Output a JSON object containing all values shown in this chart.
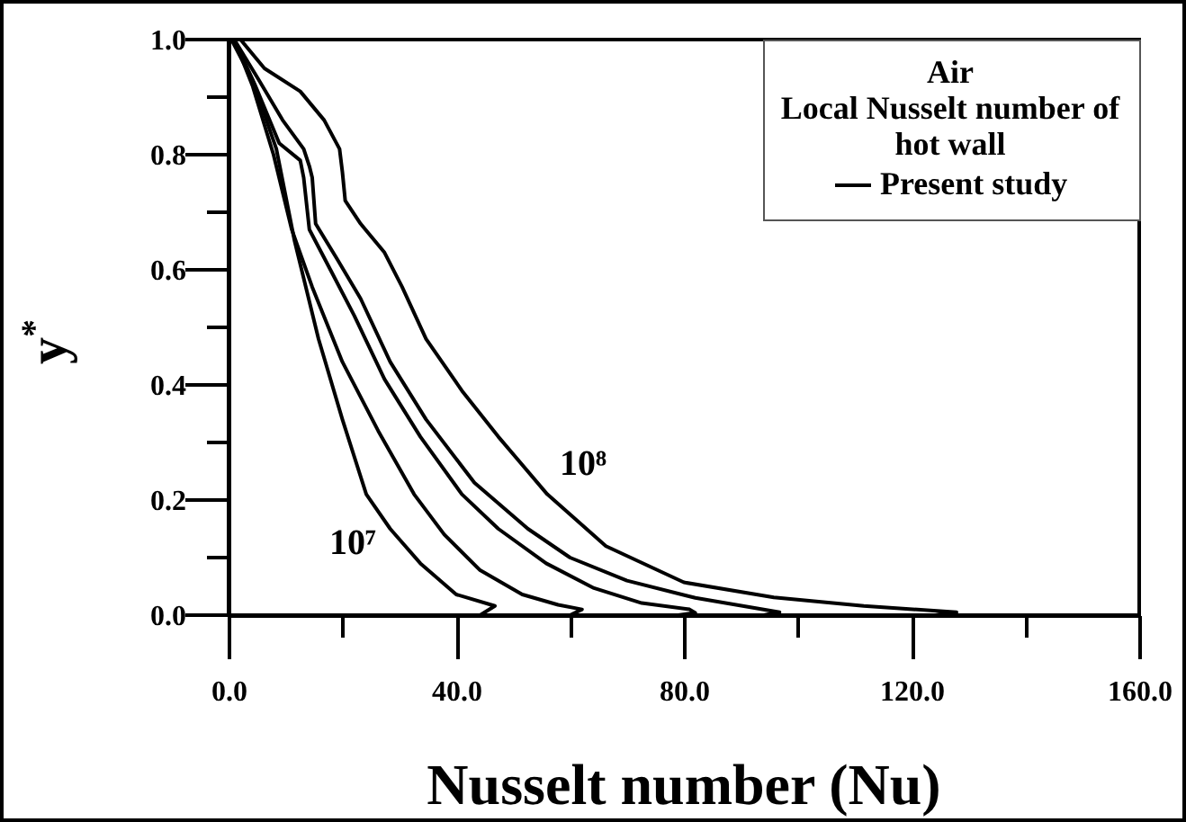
{
  "chart_data": {
    "type": "line",
    "xlabel": "Nusselt number (Nu)",
    "ylabel": "y$^{*}$",
    "legend_title": "Air\nLocal Nusselt number of\nhot wall",
    "legend": "top right",
    "xlim": [
      0,
      160
    ],
    "ylim": [
      0,
      1
    ],
    "xticks": [
      {
        "value": 0,
        "label": "0.0"
      },
      {
        "value": 20,
        "label": null
      },
      {
        "value": 40,
        "label": "40.0"
      },
      {
        "value": 60,
        "label": null
      },
      {
        "value": 80,
        "label": "80.0"
      },
      {
        "value": 100,
        "label": null
      },
      {
        "value": 120,
        "label": "120.0"
      },
      {
        "value": 140,
        "label": null
      },
      {
        "value": 160,
        "label": "160.0"
      }
    ],
    "yticks": [
      {
        "value": 0,
        "label": "0.0"
      },
      {
        "value": 0.1,
        "label": null
      },
      {
        "value": 0.2,
        "label": "0.2"
      },
      {
        "value": 0.3,
        "label": null
      },
      {
        "value": 0.4,
        "label": "0.4"
      },
      {
        "value": 0.5,
        "label": null
      },
      {
        "value": 0.6,
        "label": "0.6"
      },
      {
        "value": 0.7,
        "label": null
      },
      {
        "value": 0.8,
        "label": "0.8"
      },
      {
        "value": 0.9,
        "label": null
      },
      {
        "value": 1,
        "label": "1.0"
      }
    ],
    "annotations": [
      "10⁷",
      "10⁸"
    ],
    "series": [
      {
        "name": "Present study",
        "color": "#000000",
        "x": [
          0.5,
          4.2,
          8.4,
          11.6,
          15.8,
          20,
          24.2,
          28.4,
          33.7,
          40,
          46.8,
          44.2
        ],
        "values": [
          1.0,
          0.93,
          0.81,
          0.65,
          0.48,
          0.34,
          0.21,
          0.15,
          0.09,
          0.036,
          0.016,
          0.0
        ]
      },
      {
        "color": "#000000",
        "x": [
          1,
          4.2,
          7.9,
          11.1,
          14.7,
          20,
          26.3,
          32.6,
          37.9,
          44.2,
          51.6,
          57.9,
          62.1,
          60
        ],
        "values": [
          1.0,
          0.92,
          0.8,
          0.67,
          0.57,
          0.44,
          0.32,
          0.21,
          0.14,
          0.078,
          0.036,
          0.018,
          0.01,
          0.0
        ]
      },
      {
        "color": "#000000",
        "x": [
          1,
          4.7,
          8.9,
          12.6,
          13.2,
          14.2,
          17.9,
          22.1,
          27.4,
          33.7,
          41,
          47.4,
          55.8,
          64.2,
          72.6,
          81,
          82,
          79
        ],
        "values": [
          1.0,
          0.92,
          0.82,
          0.79,
          0.76,
          0.67,
          0.6,
          0.52,
          0.41,
          0.31,
          0.21,
          0.15,
          0.09,
          0.047,
          0.021,
          0.01,
          0.004,
          0.0
        ]
      },
      {
        "color": "#000000",
        "x": [
          1,
          5.3,
          9.5,
          13.2,
          14.2,
          14.7,
          15.3,
          19,
          23.2,
          28.4,
          34.7,
          43.2,
          52.6,
          60,
          70,
          82,
          96.8,
          94
        ],
        "values": [
          1.0,
          0.93,
          0.86,
          0.81,
          0.78,
          0.76,
          0.68,
          0.62,
          0.55,
          0.44,
          0.34,
          0.23,
          0.15,
          0.1,
          0.06,
          0.03,
          0.005,
          0.0
        ]
      },
      {
        "color": "#000000",
        "x": [
          2.1,
          6.3,
          12.6,
          16.8,
          19.5,
          20,
          20.5,
          23.2,
          27.4,
          30.5,
          34.7,
          41,
          47.4,
          56,
          66.3,
          80,
          95.8,
          111.6,
          127.9,
          124.2
        ],
        "values": [
          1.0,
          0.95,
          0.91,
          0.86,
          0.81,
          0.77,
          0.72,
          0.68,
          0.63,
          0.57,
          0.48,
          0.39,
          0.31,
          0.21,
          0.12,
          0.057,
          0.031,
          0.016,
          0.005,
          0.0
        ]
      }
    ]
  }
}
